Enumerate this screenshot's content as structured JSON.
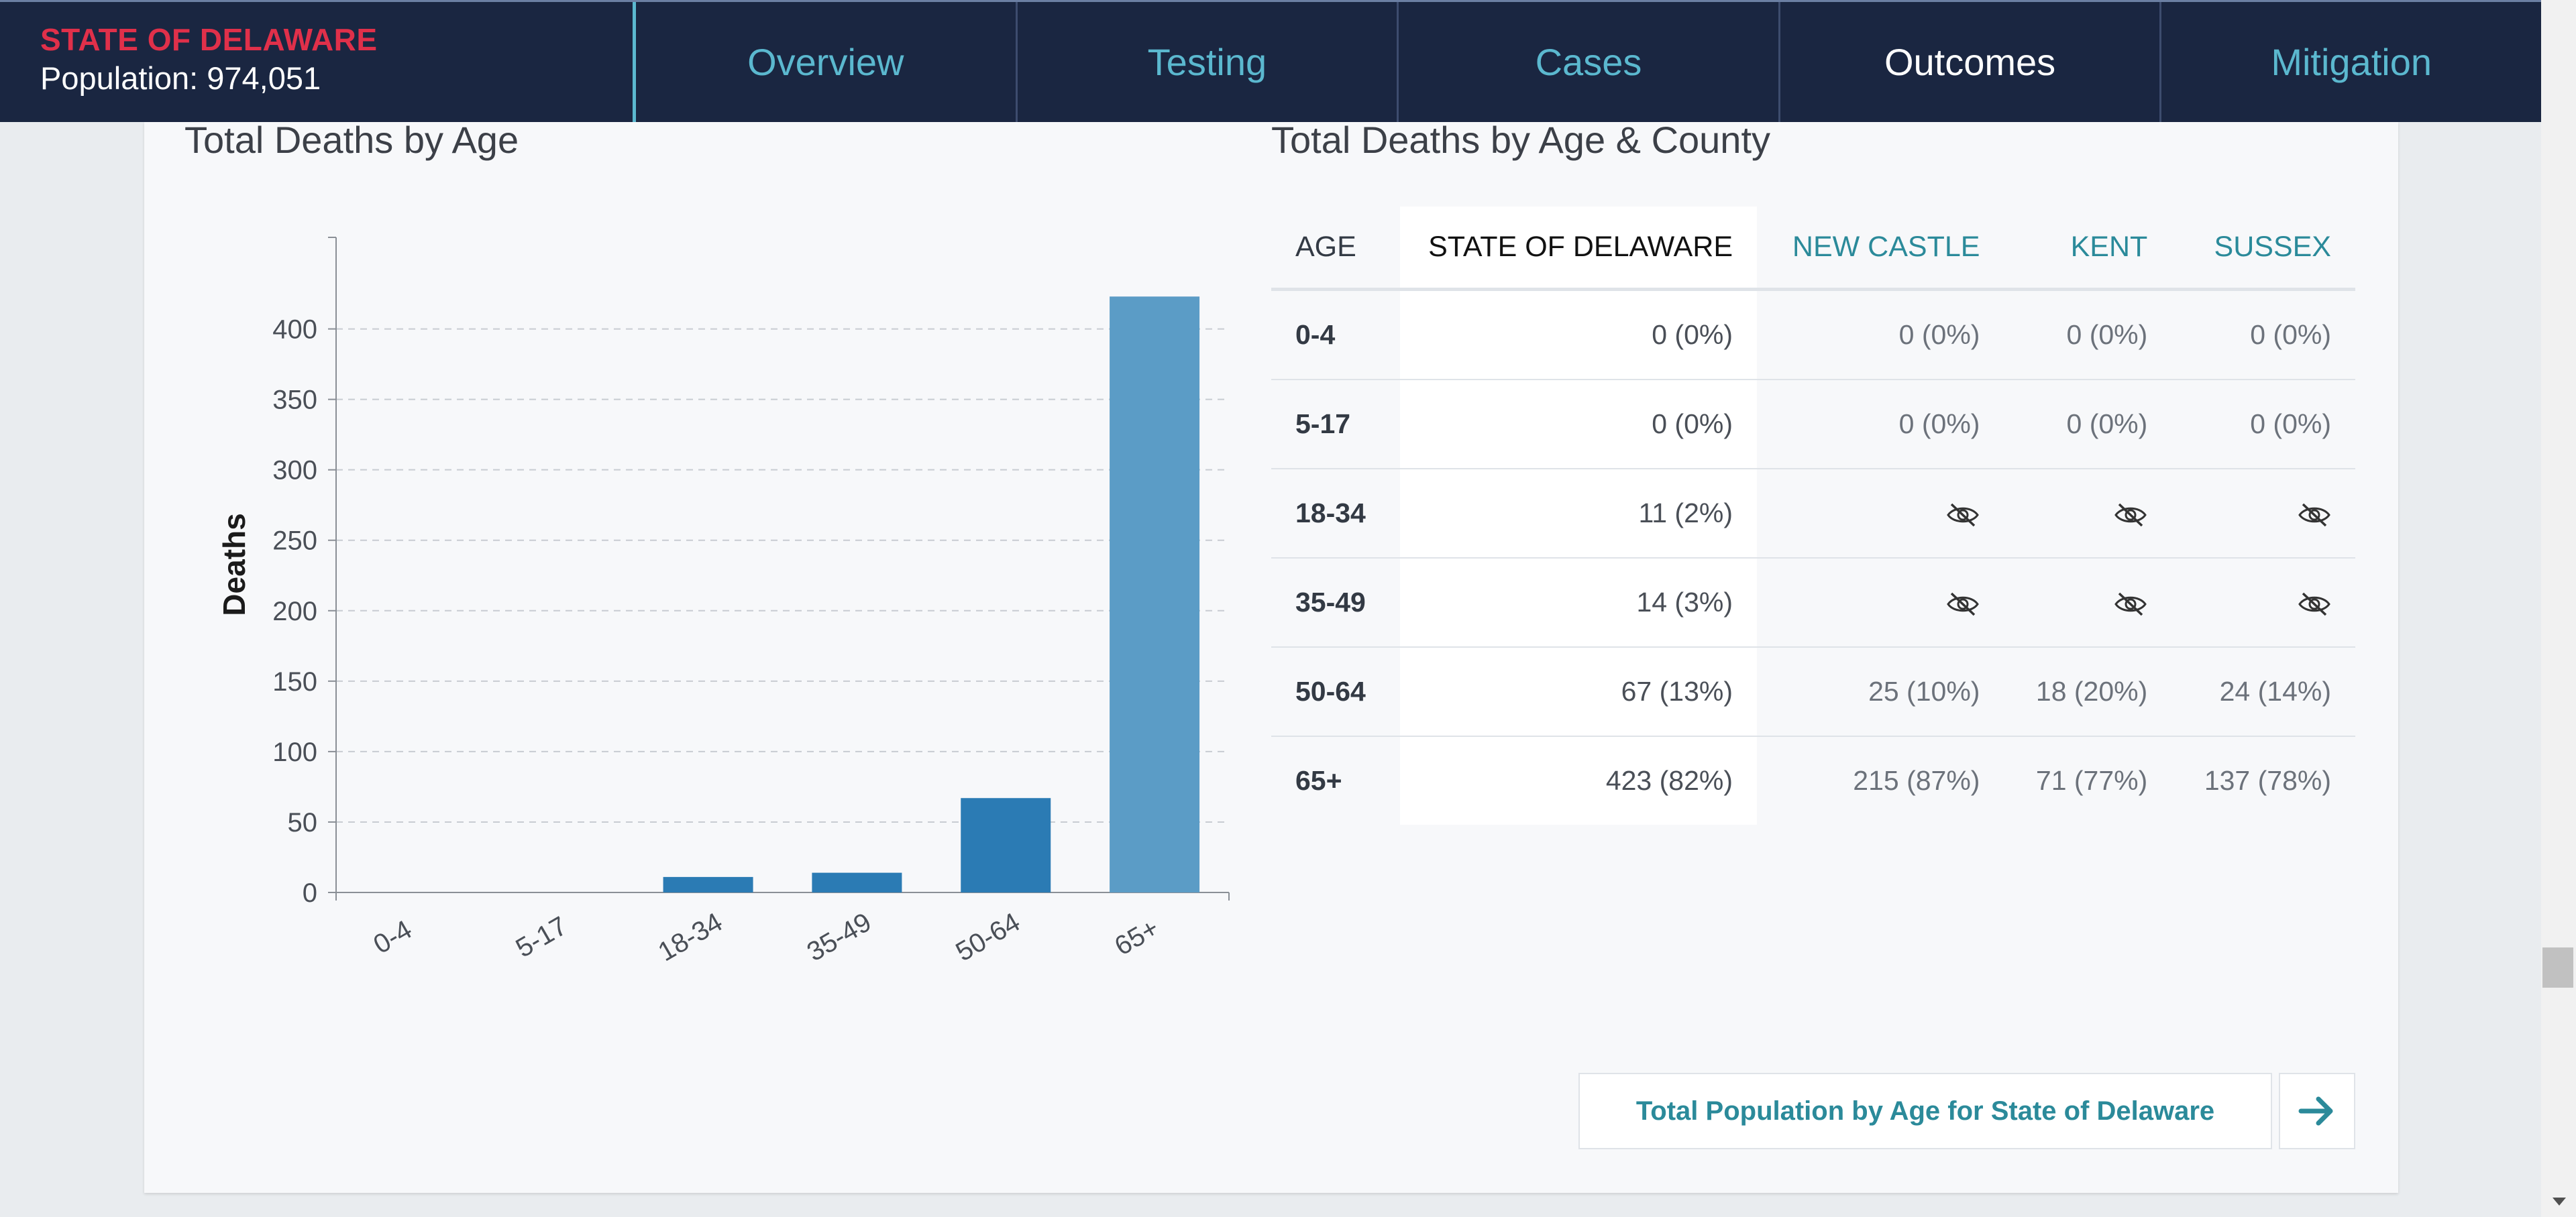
{
  "header": {
    "title": "STATE OF DELAWARE",
    "population": "Population: 974,051"
  },
  "nav": {
    "tabs": [
      {
        "label": "Overview"
      },
      {
        "label": "Testing"
      },
      {
        "label": "Cases"
      },
      {
        "label": "Outcomes",
        "active": true
      },
      {
        "label": "Mitigation"
      }
    ]
  },
  "chart_title": "Total Deaths by Age",
  "table_title": "Total Deaths by Age & County",
  "chart_data": {
    "type": "bar",
    "categories": [
      "0-4",
      "5-17",
      "18-34",
      "35-49",
      "50-64",
      "65+"
    ],
    "values": [
      0,
      0,
      11,
      14,
      67,
      423
    ],
    "ylabel": "Deaths",
    "xlabel": "",
    "ylim": [
      0,
      465
    ],
    "yticks": [
      0,
      50,
      100,
      150,
      200,
      250,
      300,
      350,
      400
    ],
    "grid": true,
    "colors": {
      "bar": "#2b7bb4",
      "bar_highlight": "#5b9cc6"
    }
  },
  "table": {
    "headers": [
      "AGE",
      "STATE OF DELAWARE",
      "NEW CASTLE",
      "KENT",
      "SUSSEX"
    ],
    "rows": [
      {
        "age": "0-4",
        "state": "0 (0%)",
        "new_castle": "0 (0%)",
        "kent": "0 (0%)",
        "sussex": "0 (0%)"
      },
      {
        "age": "5-17",
        "state": "0 (0%)",
        "new_castle": "0 (0%)",
        "kent": "0 (0%)",
        "sussex": "0 (0%)"
      },
      {
        "age": "18-34",
        "state": "11 (2%)",
        "new_castle": null,
        "kent": null,
        "sussex": null
      },
      {
        "age": "35-49",
        "state": "14 (3%)",
        "new_castle": null,
        "kent": null,
        "sussex": null
      },
      {
        "age": "50-64",
        "state": "67 (13%)",
        "new_castle": "25 (10%)",
        "kent": "18 (20%)",
        "sussex": "24 (14%)"
      },
      {
        "age": "65+",
        "state": "423 (82%)",
        "new_castle": "215 (87%)",
        "kent": "71 (77%)",
        "sussex": "137 (78%)"
      }
    ]
  },
  "footer": {
    "population_link": "Total Population by Age for State of Delaware"
  },
  "icons": {
    "hidden": "eye-slash-icon",
    "next": "arrow-right-icon"
  },
  "colors": {
    "nav_bg": "#1a2641",
    "accent": "#5bb8cf",
    "brand_red": "#e0304a",
    "link_teal": "#2b8a9a"
  }
}
